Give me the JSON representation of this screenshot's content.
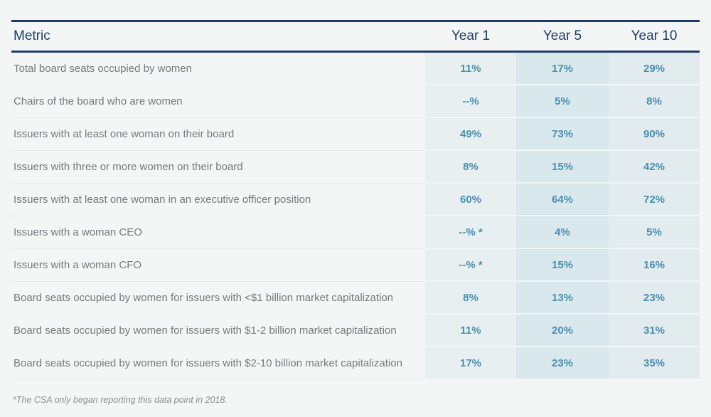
{
  "table": {
    "columns": [
      "Metric",
      "Year 1",
      "Year 5",
      "Year 10"
    ],
    "rows": [
      {
        "metric": "Total board seats occupied by women",
        "year1": "11%",
        "year5": "17%",
        "year10": "29%"
      },
      {
        "metric": "Chairs of the board who are women",
        "year1": "--%",
        "year5": "5%",
        "year10": "8%"
      },
      {
        "metric": "Issuers with at least one woman on their board",
        "year1": "49%",
        "year5": "73%",
        "year10": "90%"
      },
      {
        "metric": "Issuers with three or more women on their board",
        "year1": "8%",
        "year5": "15%",
        "year10": "42%"
      },
      {
        "metric": "Issuers with at least one woman in an executive officer position",
        "year1": "60%",
        "year5": "64%",
        "year10": "72%"
      },
      {
        "metric": "Issuers with a woman CEO",
        "year1": "--% *",
        "year5": "4%",
        "year10": "5%"
      },
      {
        "metric": "Issuers with a woman CFO",
        "year1": "--% *",
        "year5": "15%",
        "year10": "16%"
      },
      {
        "metric": "Board seats occupied by women for issuers with <$1 billion market capitalization",
        "year1": "8%",
        "year5": "13%",
        "year10": "23%"
      },
      {
        "metric": "Board seats occupied by women for issuers with $1-2 billion market capitalization",
        "year1": "11%",
        "year5": "20%",
        "year10": "31%"
      },
      {
        "metric": "Board seats occupied by women for issuers with $2-10 billion market capitalization",
        "year1": "17%",
        "year5": "23%",
        "year10": "35%"
      }
    ],
    "footnote": "*The CSA only began reporting this data point in 2018."
  },
  "colors": {
    "page_background": "#f3f6f5",
    "header_rule": "#1e3c64",
    "header_text": "#1e3e66",
    "metric_text": "#77797d",
    "value_text": "#4a8fad",
    "year1_band": "#e7eff1",
    "year5_band": "#d9e8ec",
    "year10_band": "#e2ebee",
    "footnote_text": "#8c8f93"
  },
  "chart_data": {
    "type": "table",
    "title": "",
    "columns": [
      "Metric",
      "Year 1",
      "Year 5",
      "Year 10"
    ],
    "rows": [
      [
        "Total board seats occupied by women",
        "11%",
        "17%",
        "29%"
      ],
      [
        "Chairs of the board who are women",
        "--%",
        "5%",
        "8%"
      ],
      [
        "Issuers with at least one woman on their board",
        "49%",
        "73%",
        "90%"
      ],
      [
        "Issuers with three or more women on their board",
        "8%",
        "15%",
        "42%"
      ],
      [
        "Issuers with at least one woman in an executive officer position",
        "60%",
        "64%",
        "72%"
      ],
      [
        "Issuers with a woman CEO",
        "--% *",
        "4%",
        "5%"
      ],
      [
        "Issuers with a woman CFO",
        "--% *",
        "15%",
        "16%"
      ],
      [
        "Board seats occupied by women for issuers with <$1 billion market capitalization",
        "8%",
        "13%",
        "23%"
      ],
      [
        "Board seats occupied by women for issuers with $1-2 billion market capitalization",
        "11%",
        "20%",
        "31%"
      ],
      [
        "Board seats occupied by women for issuers with $2-10 billion market capitalization",
        "17%",
        "23%",
        "35%"
      ]
    ],
    "annotations": [
      "*The CSA only began reporting this data point in 2018."
    ]
  }
}
